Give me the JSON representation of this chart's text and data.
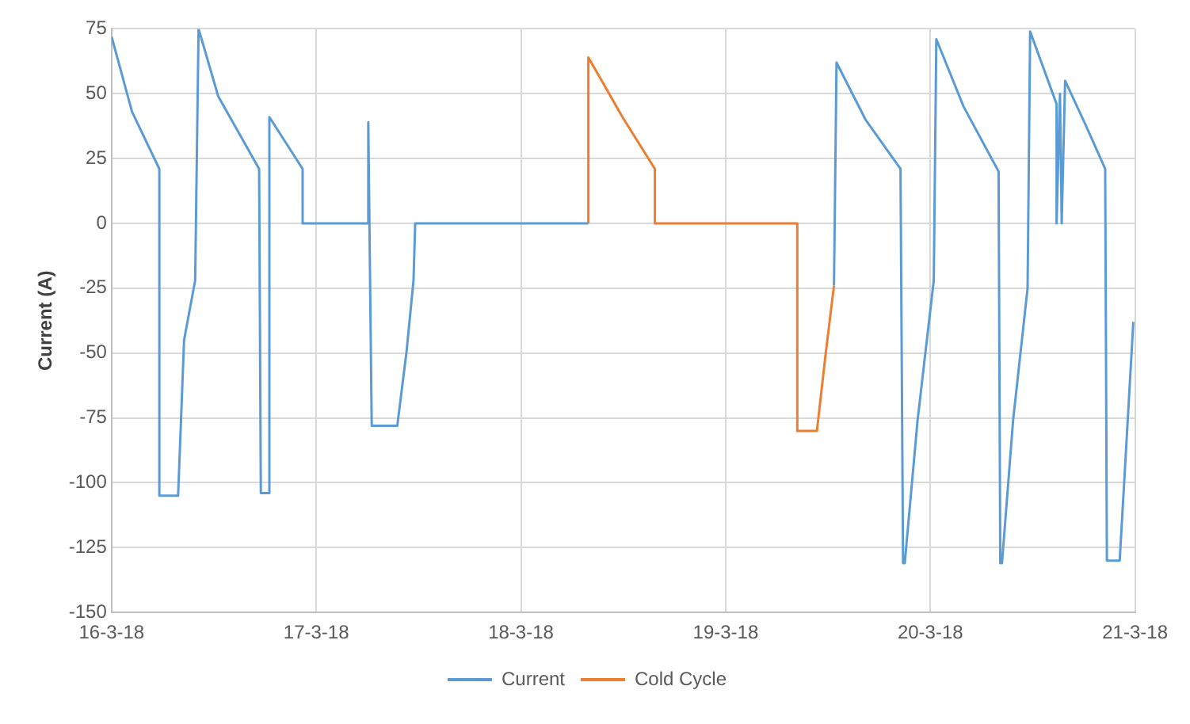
{
  "chart_data": {
    "type": "line",
    "ylabel": "Current (A)",
    "xlim": [
      "--03-16T00:00",
      "--03-21T00:00"
    ],
    "xticks": [
      {
        "value": "--03-16",
        "label": "16-3-18"
      },
      {
        "value": "--03-17",
        "label": "17-3-18"
      },
      {
        "value": "--03-18",
        "label": "18-3-18"
      },
      {
        "value": "--03-19",
        "label": "19-3-18"
      },
      {
        "value": "--03-20",
        "label": "20-3-18"
      },
      {
        "value": "--03-21",
        "label": "21-3-18"
      }
    ],
    "ylim": [
      -150,
      75
    ],
    "yticks": [
      -150,
      -125,
      -100,
      -75,
      -50,
      -25,
      0,
      25,
      50,
      75
    ],
    "grid": true,
    "legend": "bottom",
    "marker": "none",
    "line_style": "solid",
    "series": [
      {
        "name": "Current",
        "color": "#5b9bd5",
        "x": [
          "--03-16T00:00",
          "--03-16T02:24",
          "--03-16T05:36",
          "--03-16T05:36",
          "--03-16T07:48",
          "--03-16T08:30",
          "--03-16T09:48",
          "--03-16T10:12",
          "--03-16T12:30",
          "--03-16T17:18",
          "--03-16T17:30",
          "--03-16T18:30",
          "--03-16T18:30",
          "--03-16T22:24",
          "--03-16T22:24",
          "--03-17T06:06",
          "--03-17T06:06",
          "--03-17T06:30",
          "--03-17T09:30",
          "--03-17T10:36",
          "--03-17T11:24",
          "--03-17T11:36",
          "--03-18T07:54",
          "--03-18T20:00",
          "--03-19T12:42",
          "--03-19T13:00",
          "--03-19T16:24",
          "--03-19T20:30",
          "--03-19T20:48",
          "--03-19T21:00",
          "--03-19T22:30",
          "--03-20T00:24",
          "--03-20T00:42",
          "--03-20T03:54",
          "--03-20T08:00",
          "--03-20T08:12",
          "--03-20T08:24",
          "--03-20T09:42",
          "--03-20T11:24",
          "--03-20T11:42",
          "--03-20T14:48",
          "--03-20T14:48",
          "--03-20T15:12",
          "--03-20T15:24",
          "--03-20T15:48",
          "--03-20T18:12",
          "--03-20T20:30",
          "--03-20T20:42",
          "--03-20T22:12",
          "--03-20T23:48"
        ],
        "values": [
          72,
          43,
          21,
          -105,
          -105,
          -45,
          -22,
          75,
          49,
          21,
          -104,
          -104,
          41,
          21,
          0,
          0,
          39,
          -78,
          -78,
          -49,
          -22,
          0,
          0,
          null,
          -24,
          62,
          40,
          21,
          -131,
          -131,
          -76,
          -22,
          71,
          45,
          20,
          -131,
          -131,
          -76,
          -25,
          74,
          46,
          0,
          50,
          0,
          55,
          38,
          21,
          -130,
          -130,
          -38
        ]
      },
      {
        "name": "Cold Cycle",
        "color": "#ed7d31",
        "x": [
          "--03-18T07:54",
          "--03-18T07:54",
          "--03-18T11:54",
          "--03-18T15:42",
          "--03-18T15:42",
          "--03-19T08:24",
          "--03-19T08:24",
          "--03-19T10:42",
          "--03-19T11:42",
          "--03-19T12:42"
        ],
        "values": [
          0,
          64,
          41,
          21,
          0,
          0,
          -80,
          -80,
          -51,
          -24
        ]
      }
    ]
  }
}
